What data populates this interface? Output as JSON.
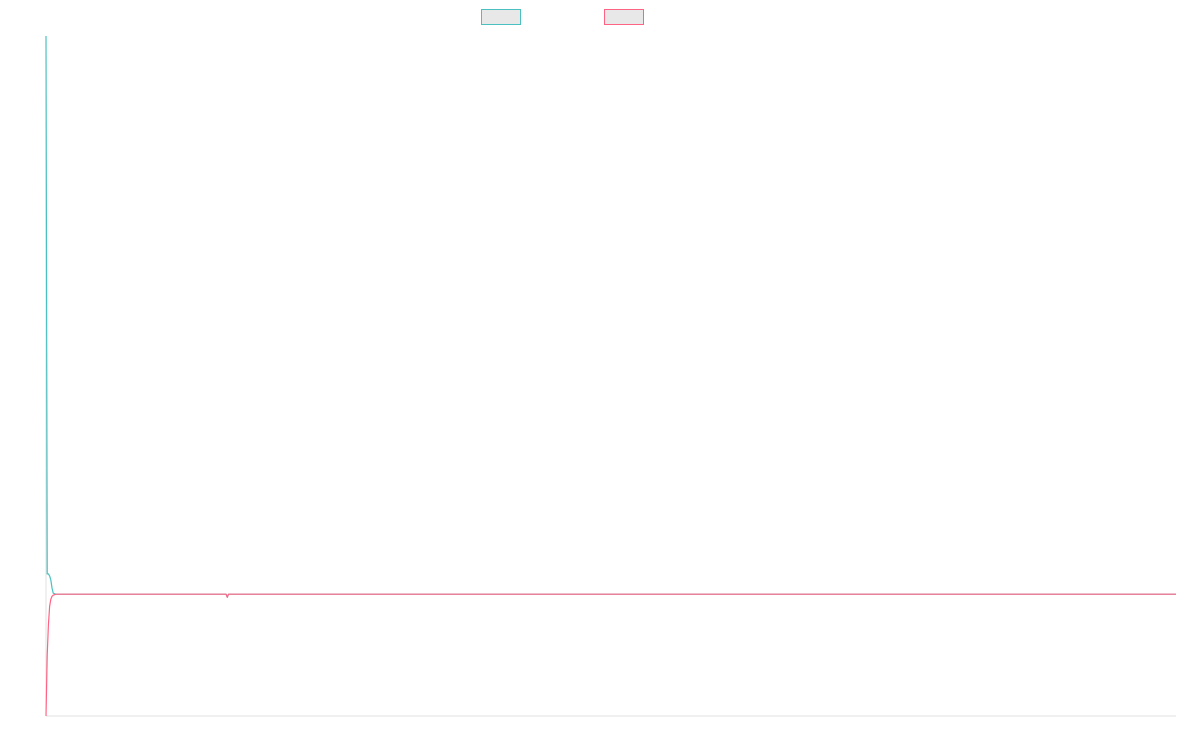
{
  "chart_data": {
    "type": "line",
    "legend": "top-center",
    "grid": false,
    "x": [
      0,
      1,
      2,
      3,
      4,
      5,
      6,
      8,
      10,
      14,
      20,
      30,
      60,
      100,
      149,
      150,
      151,
      200,
      300,
      400,
      500,
      600,
      700,
      800,
      900,
      935
    ],
    "xlim": [
      0,
      935
    ],
    "ylim": [
      -1.2,
      5.5
    ],
    "series": [
      {
        "name": "",
        "color": "#4bc0c0",
        "fill": "#e8e8e8",
        "values": [
          5.5,
          0.2,
          0.2,
          0.18,
          0.14,
          0.06,
          0.01,
          0.0,
          0.0,
          0.0,
          0.0,
          0.0,
          0.0,
          0.0,
          0.0,
          -0.03,
          0.0,
          0.0,
          0.0,
          0.0,
          0.0,
          0.0,
          0.0,
          0.0,
          0.0,
          0.0
        ]
      },
      {
        "name": "",
        "color": "#ff6384",
        "fill": "#e8e8e8",
        "values": [
          -1.2,
          -0.6,
          -0.3,
          -0.12,
          -0.05,
          -0.02,
          -0.01,
          0.0,
          0.0,
          0.0,
          0.0,
          0.0,
          0.0,
          0.0,
          0.0,
          -0.03,
          0.0,
          0.0,
          0.0,
          0.0,
          0.0,
          0.0,
          0.0,
          0.0,
          0.0,
          0.0
        ]
      }
    ]
  }
}
